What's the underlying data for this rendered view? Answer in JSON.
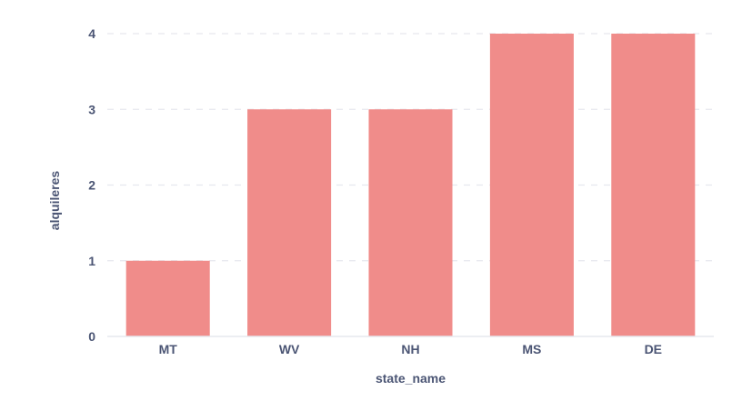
{
  "chart_data": {
    "type": "bar",
    "categories": [
      "MT",
      "WV",
      "NH",
      "MS",
      "DE"
    ],
    "values": [
      1,
      3,
      3,
      4,
      4
    ],
    "title": "",
    "xlabel": "state_name",
    "ylabel": "alquileres",
    "ylim": [
      0,
      4
    ],
    "yticks": [
      0,
      1,
      2,
      3,
      4
    ],
    "grid": true,
    "bar_color": "#f08c8a",
    "text_color": "#4b5574",
    "grid_color": "#e6e8ee"
  }
}
